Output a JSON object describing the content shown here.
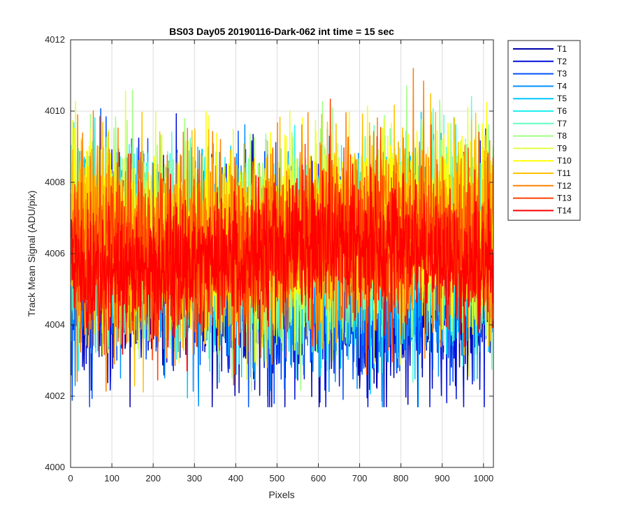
{
  "chart_data": {
    "type": "line",
    "title": "BS03 Day05 20190116-Dark-062 int time = 15 sec",
    "xlabel": "Pixels",
    "ylabel": "Track Mean Signal (ADU/pix)",
    "xlim": [
      0,
      1024
    ],
    "ylim": [
      4000,
      4012
    ],
    "x_ticks": [
      "0",
      "100",
      "200",
      "300",
      "400",
      "500",
      "600",
      "700",
      "800",
      "900",
      "1000"
    ],
    "y_ticks": [
      "4000",
      "4002",
      "4004",
      "4006",
      "4008",
      "4010",
      "4012"
    ],
    "grid": true,
    "legend_position": "outside-top-right",
    "x_points": 1024,
    "series": [
      {
        "name": "T1",
        "color": "#0000a8",
        "mean": 4005.2,
        "spread": 1.35
      },
      {
        "name": "T2",
        "color": "#0010d8",
        "mean": 4005.4,
        "spread": 1.35
      },
      {
        "name": "T3",
        "color": "#0050ff",
        "mean": 4005.6,
        "spread": 1.35
      },
      {
        "name": "T4",
        "color": "#0090ff",
        "mean": 4005.8,
        "spread": 1.35
      },
      {
        "name": "T5",
        "color": "#00c8ff",
        "mean": 4006.0,
        "spread": 1.3
      },
      {
        "name": "T6",
        "color": "#20f0f0",
        "mean": 4006.2,
        "spread": 1.3
      },
      {
        "name": "T7",
        "color": "#60ffc0",
        "mean": 4006.4,
        "spread": 1.3
      },
      {
        "name": "T8",
        "color": "#a0ff80",
        "mean": 4006.5,
        "spread": 1.3
      },
      {
        "name": "T9",
        "color": "#e0ff40",
        "mean": 4006.6,
        "spread": 1.3
      },
      {
        "name": "T10",
        "color": "#ffff00",
        "mean": 4006.6,
        "spread": 1.3
      },
      {
        "name": "T11",
        "color": "#ffc000",
        "mean": 4006.6,
        "spread": 1.3
      },
      {
        "name": "T12",
        "color": "#ff8000",
        "mean": 4006.5,
        "spread": 1.3
      },
      {
        "name": "T13",
        "color": "#ff4000",
        "mean": 4006.2,
        "spread": 1.15
      },
      {
        "name": "T14",
        "color": "#ff0000",
        "mean": 4005.9,
        "spread": 0.9
      }
    ]
  }
}
